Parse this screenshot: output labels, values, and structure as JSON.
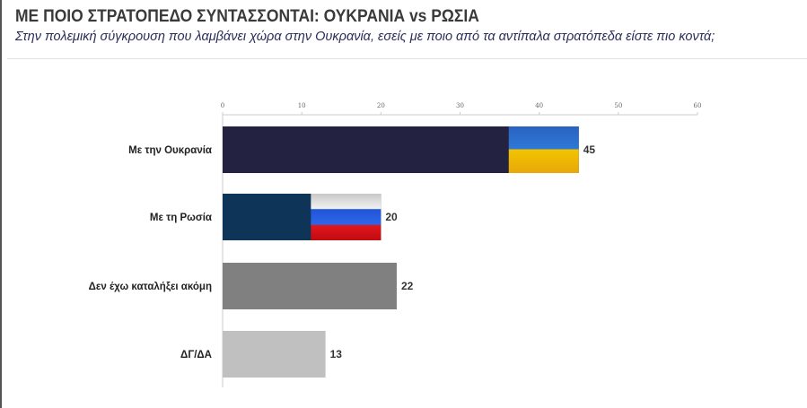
{
  "header": {
    "title": "ΜΕ ΠΟΙΟ ΣΤΡΑΤΟΠΕΔΟ ΣΥΝΤΑΣΣΟΝΤΑΙ: ΟΥΚΡΑΝΙΑ vs ΡΩΣΙΑ",
    "subtitle": "Στην πολεμική σύγκρουση που λαμβάνει χώρα στην Ουκρανία, εσείς με ποιο από τα αντίπαλα στρατόπεδα είστε πιο κοντά;"
  },
  "chart_data": {
    "type": "bar",
    "orientation": "horizontal",
    "title": "ΜΕ ΠΟΙΟ ΣΤΡΑΤΟΠΕΔΟ ΣΥΝΤΑΣΣΟΝΤΑΙ: ΟΥΚΡΑΝΙΑ vs ΡΩΣΙΑ",
    "categories": [
      "Με την Ουκρανία",
      "Με τη Ρωσία",
      "Δεν έχω καταλήξει ακόμη",
      "ΔΓ/ΔΑ"
    ],
    "values": [
      45,
      20,
      22,
      13
    ],
    "colors": [
      "#232241",
      "#0e3558",
      "#808080",
      "#c0c0c0"
    ],
    "flags": [
      "ukraine",
      "russia",
      null,
      null
    ],
    "xlim": [
      0,
      60
    ],
    "xticks": [
      0,
      10,
      20,
      30,
      40,
      50,
      60
    ],
    "axis_position": "top",
    "grid": false
  }
}
